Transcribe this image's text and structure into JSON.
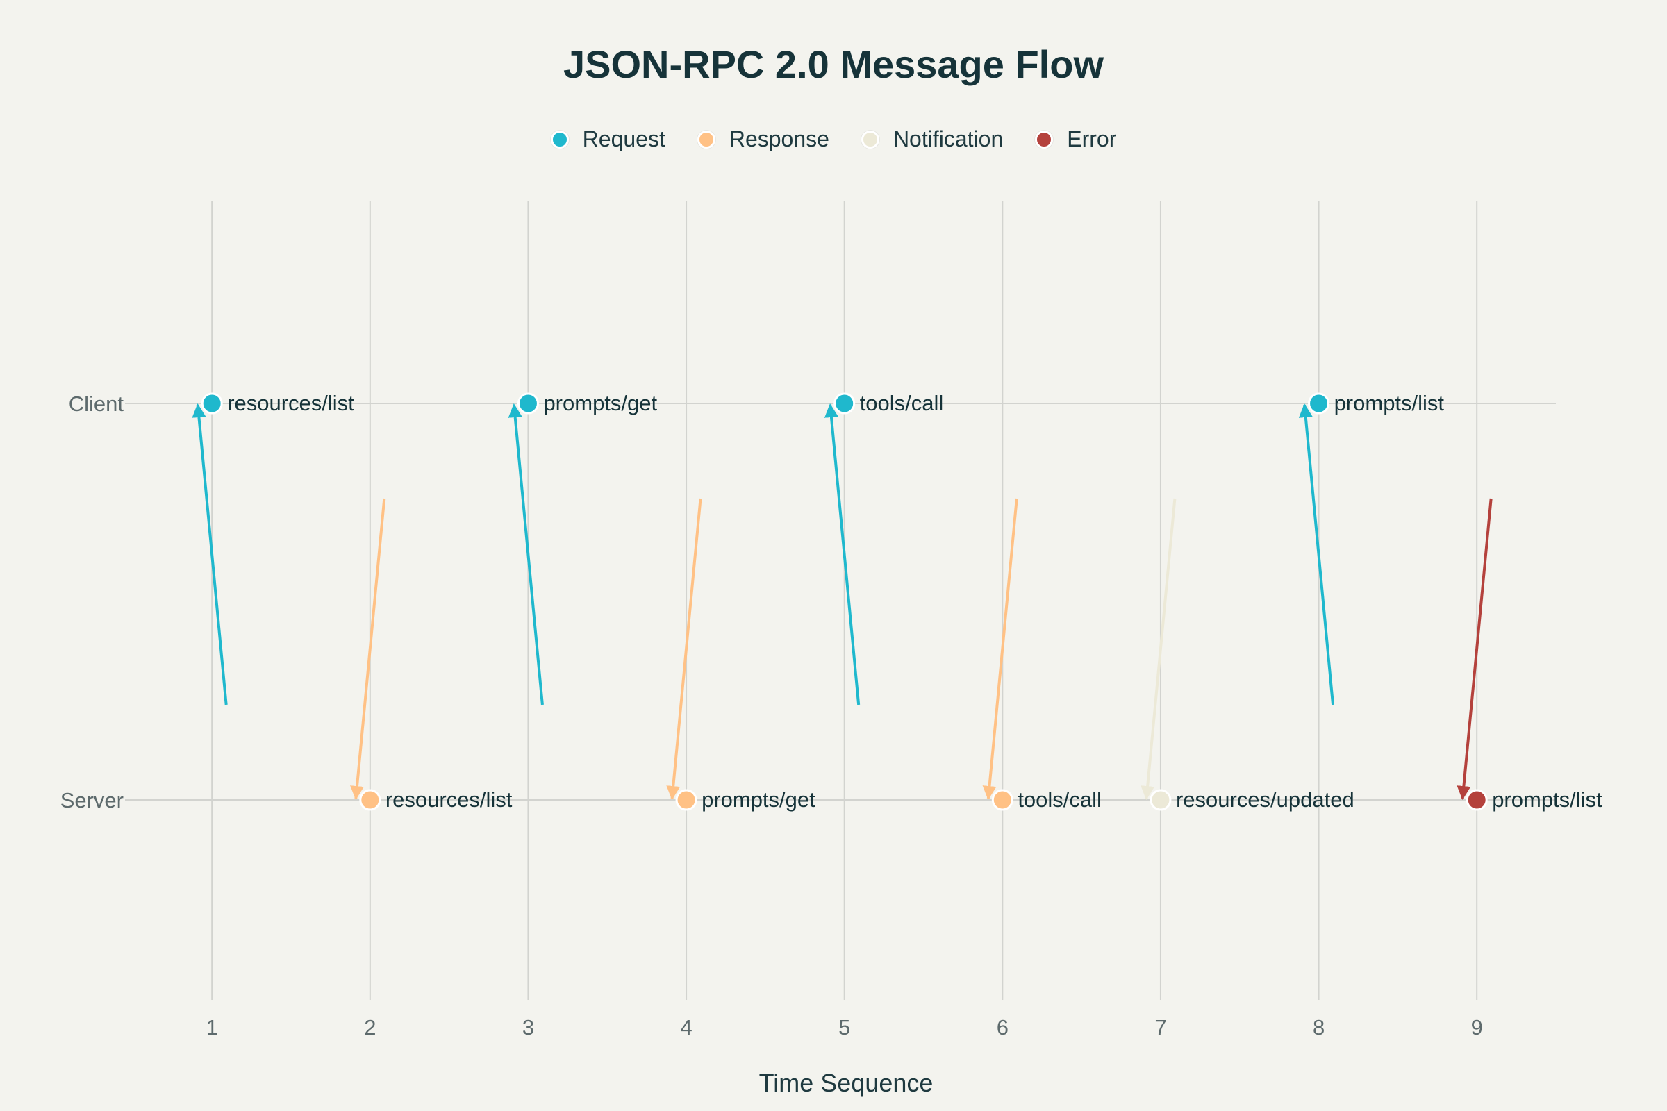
{
  "chart_data": {
    "type": "scatter",
    "title": "JSON-RPC 2.0 Message Flow",
    "xlabel": "Time Sequence",
    "ylabel": "",
    "xlim": [
      0.45,
      9.5
    ],
    "x_ticks": [
      1,
      2,
      3,
      4,
      5,
      6,
      7,
      8,
      9
    ],
    "y_categories": [
      "Server",
      "Client"
    ],
    "grid": true,
    "legend_position": "top-center",
    "legend": [
      {
        "name": "Request",
        "color": "#1fb8cd"
      },
      {
        "name": "Response",
        "color": "#ffc185"
      },
      {
        "name": "Notification",
        "color": "#ece9d7"
      },
      {
        "name": "Error",
        "color": "#b4413c"
      }
    ],
    "points": [
      {
        "x": 1,
        "y": "Client",
        "label": "resources/list",
        "type": "Request"
      },
      {
        "x": 2,
        "y": "Server",
        "label": "resources/list",
        "type": "Response"
      },
      {
        "x": 3,
        "y": "Client",
        "label": "prompts/get",
        "type": "Request"
      },
      {
        "x": 4,
        "y": "Server",
        "label": "prompts/get",
        "type": "Response"
      },
      {
        "x": 5,
        "y": "Client",
        "label": "tools/call",
        "type": "Request"
      },
      {
        "x": 6,
        "y": "Server",
        "label": "tools/call",
        "type": "Response"
      },
      {
        "x": 7,
        "y": "Server",
        "label": "resources/updated",
        "type": "Notification"
      },
      {
        "x": 8,
        "y": "Client",
        "label": "prompts/list",
        "type": "Request"
      },
      {
        "x": 9,
        "y": "Server",
        "label": "prompts/list",
        "type": "Error"
      }
    ]
  }
}
